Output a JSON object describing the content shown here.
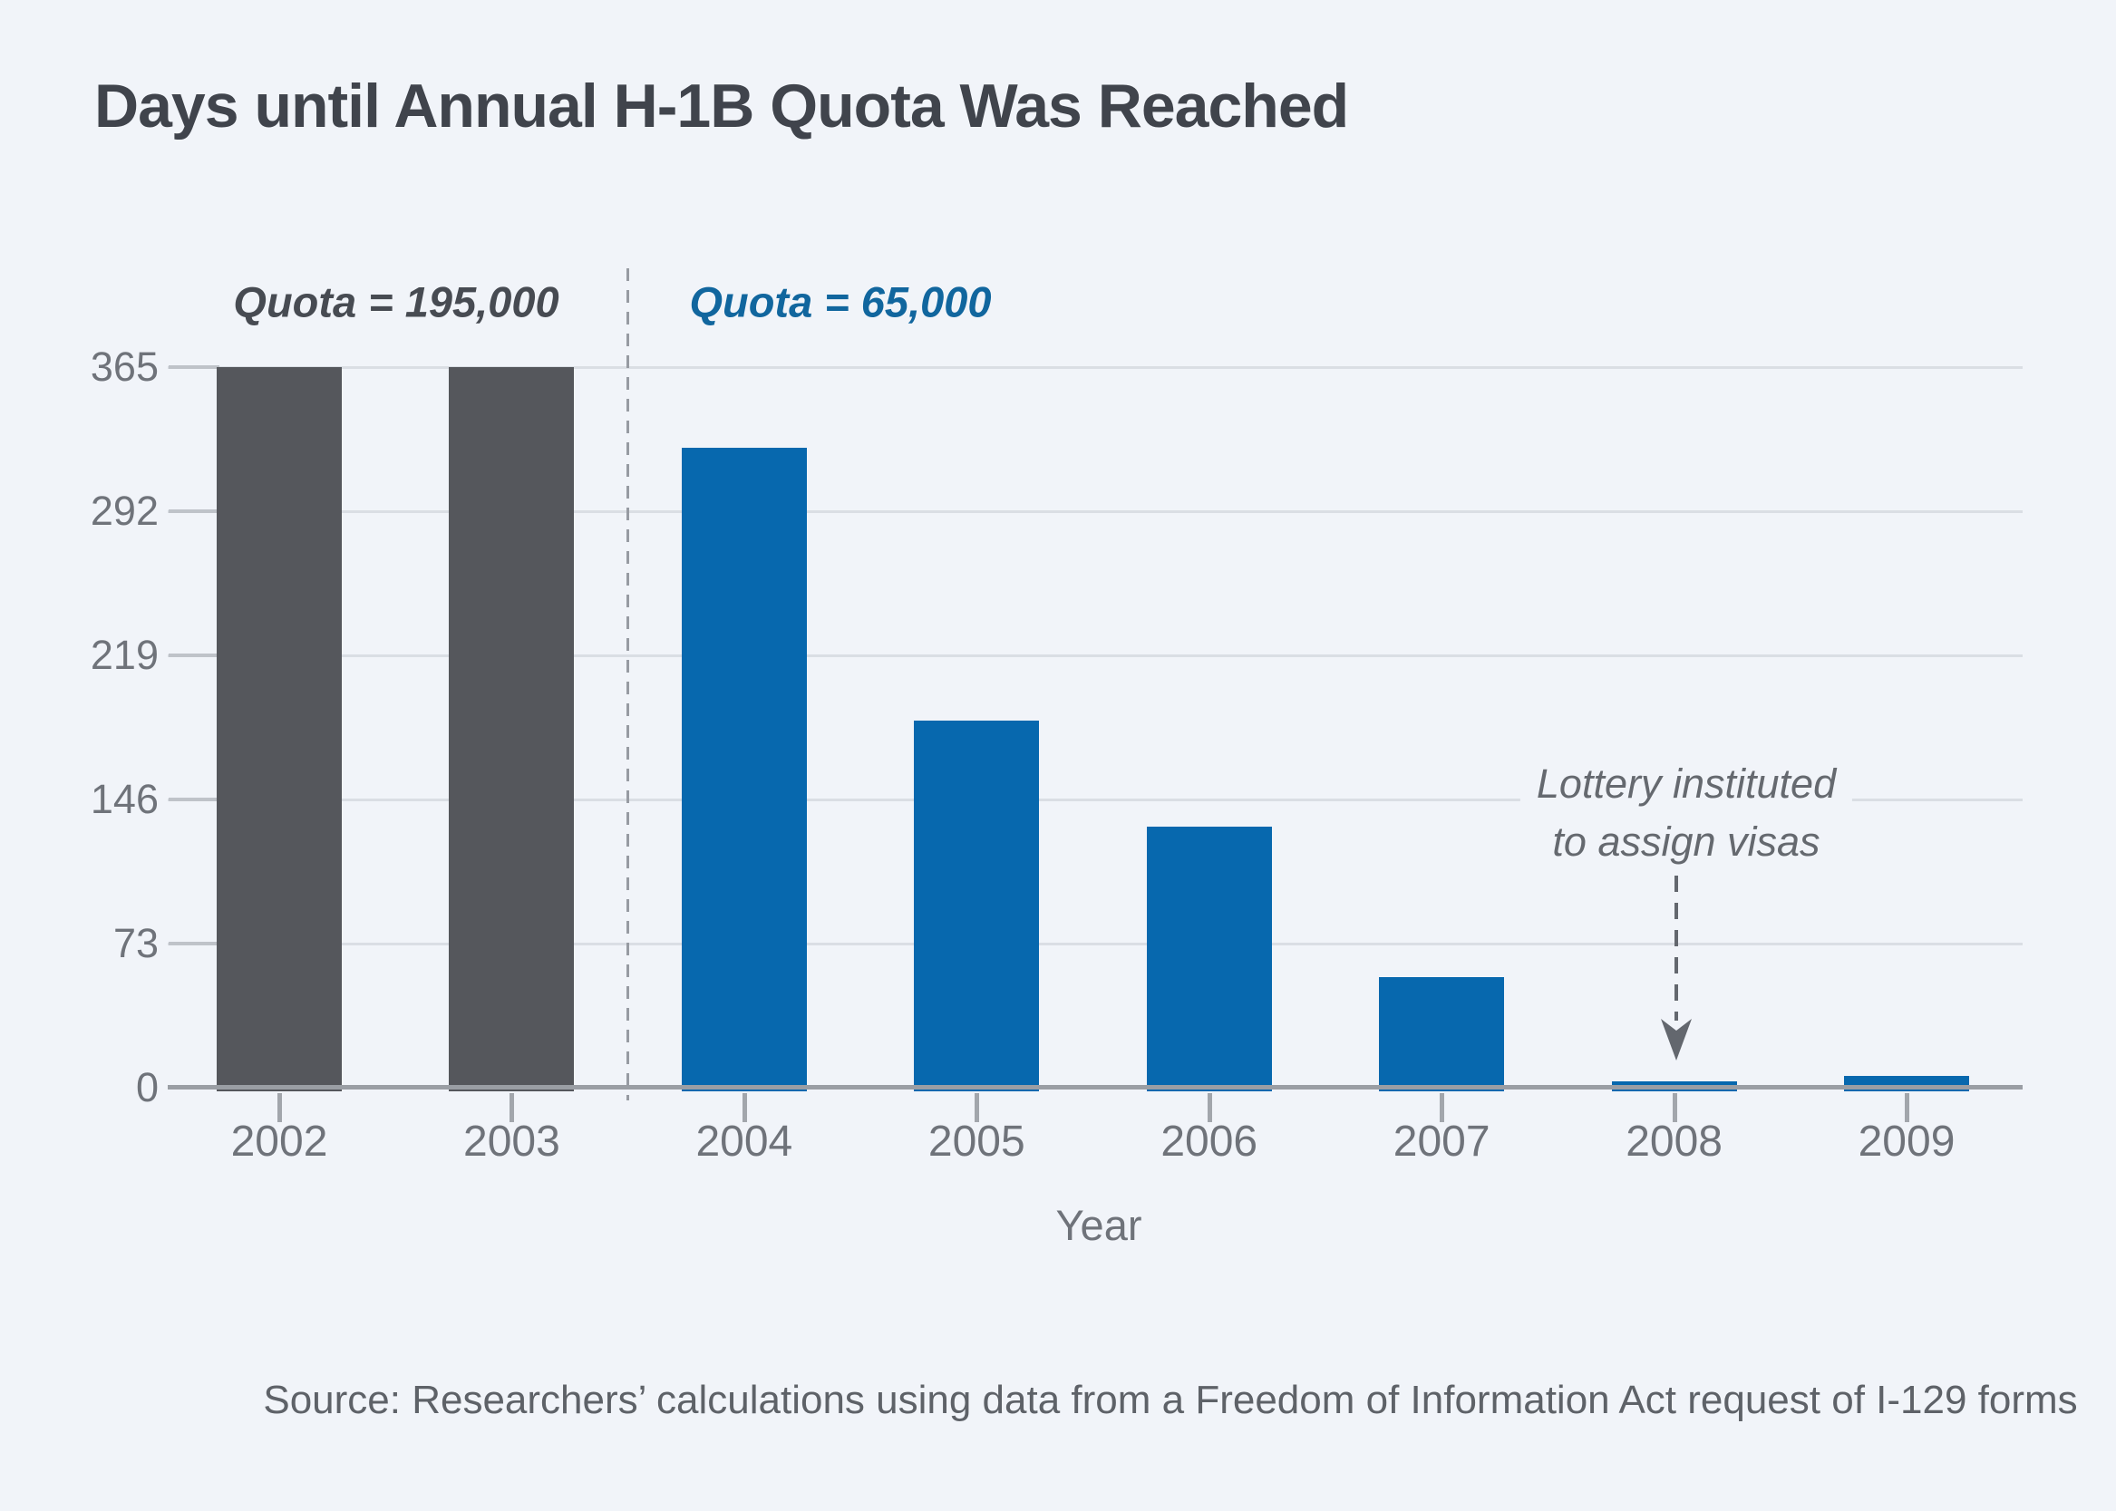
{
  "title": "Days until Annual H-1B Quota Was Reached",
  "colors": {
    "background": "#f1f4f9",
    "bar_gray": "#55575c",
    "bar_blue": "#0768ae",
    "quota_left_text": "#474b52",
    "quota_right_text": "#11669e",
    "axis_line": "#9a9ea4",
    "gridline": "#dadee4",
    "tick_text": "#6f737a",
    "annotation_text": "#65696f"
  },
  "chart_data": {
    "type": "bar",
    "title": "Days until Annual H-1B Quota Was Reached",
    "xlabel": "Year",
    "ylabel": "",
    "categories": [
      "2002",
      "2003",
      "2004",
      "2005",
      "2006",
      "2007",
      "2008",
      "2009"
    ],
    "values": [
      365,
      365,
      324,
      186,
      132,
      56,
      3,
      6
    ],
    "bar_colors": [
      "#55575c",
      "#55575c",
      "#0768ae",
      "#0768ae",
      "#0768ae",
      "#0768ae",
      "#0768ae",
      "#0768ae"
    ],
    "yticks": [
      0,
      73,
      146,
      219,
      292,
      365
    ],
    "ylim": [
      0,
      365
    ],
    "grid": true,
    "legend": "none",
    "groups": [
      {
        "label": "Quota = 195,000",
        "color": "#55575c",
        "years": [
          "2002",
          "2003"
        ]
      },
      {
        "label": "Quota = 65,000",
        "color": "#0768ae",
        "years": [
          "2004",
          "2005",
          "2006",
          "2007",
          "2008",
          "2009"
        ]
      }
    ],
    "annotations": [
      {
        "text": "Lottery instituted to assign visas",
        "target_year": "2008",
        "style": "dashed-arrow-down"
      },
      {
        "text": "dashed vertical divider between 2003 and 2004 separating quota regimes"
      }
    ]
  },
  "labels": {
    "quota_left": "Quota = 195,000",
    "quota_right": "Quota = 65,000",
    "annotation_line1": "Lottery instituted",
    "annotation_line2": "to assign visas",
    "x_axis_title": "Year",
    "source": "Source: Researchers’ calculations using data from a Freedom of Information Act request of I-129 forms"
  }
}
